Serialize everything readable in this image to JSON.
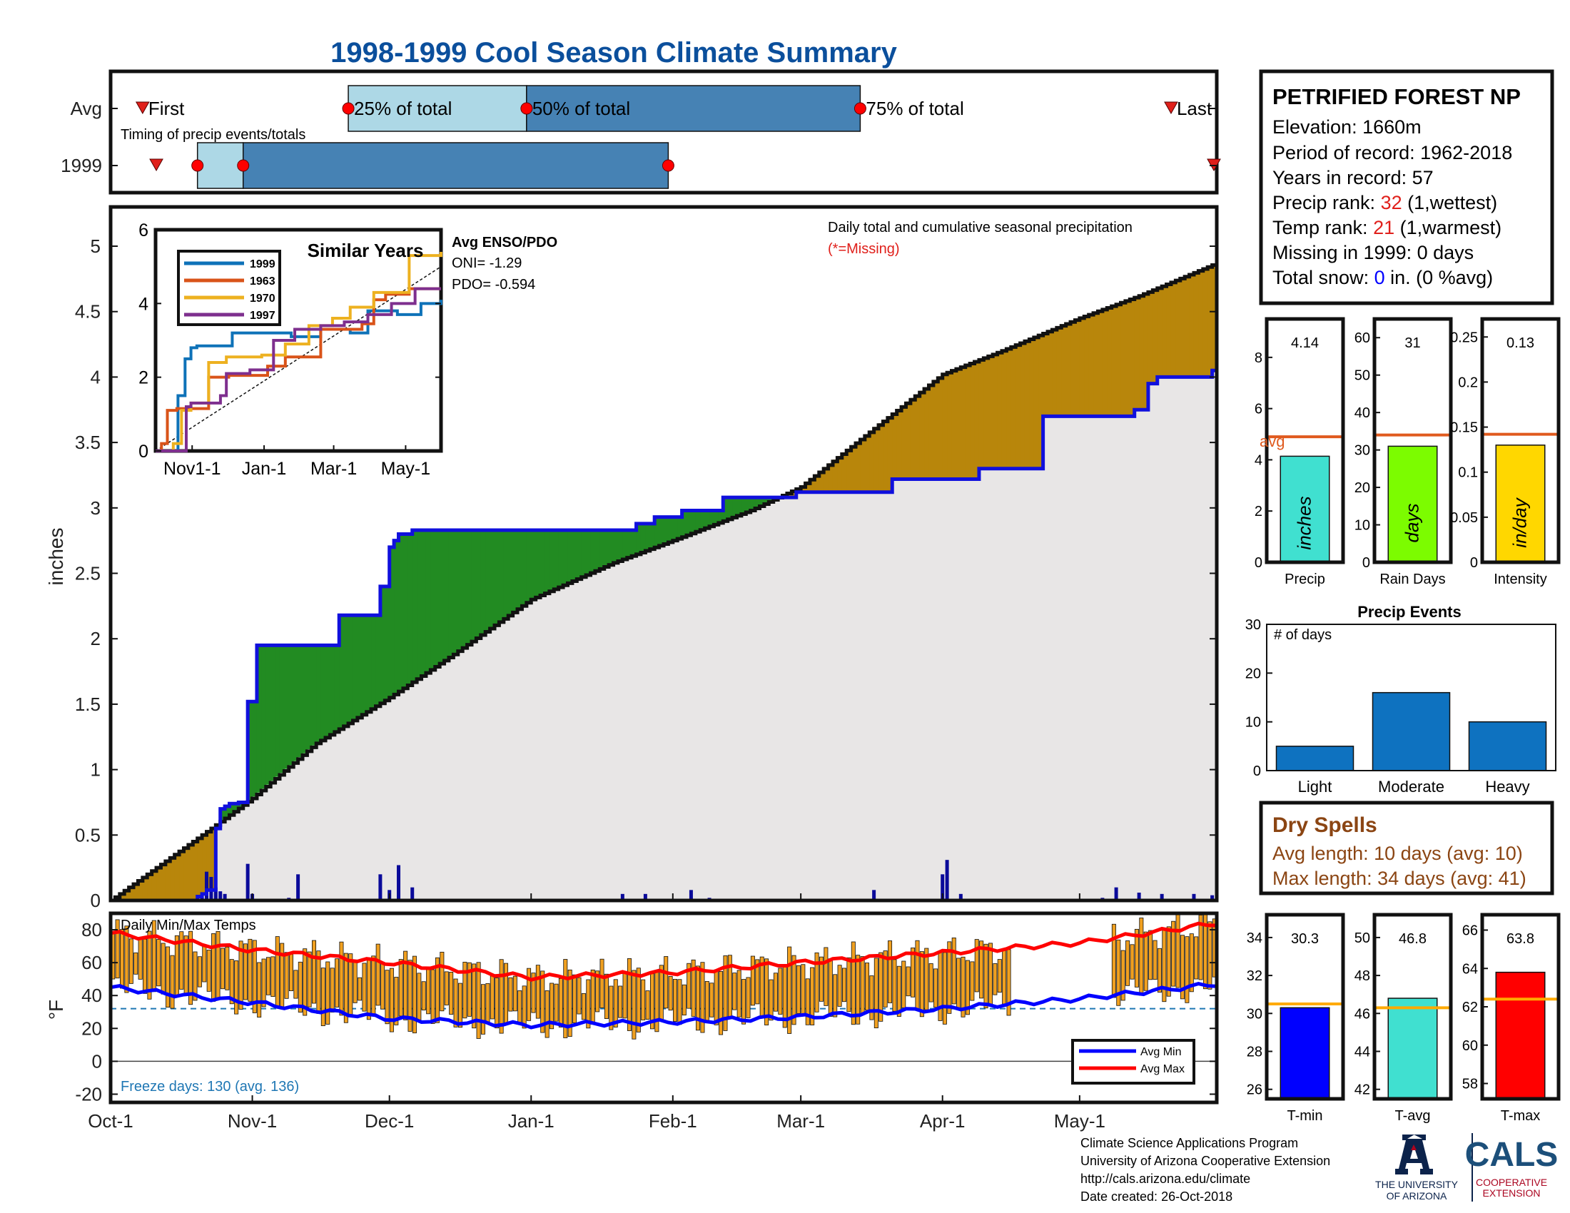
{
  "title": "1998-1999 Cool Season Climate Summary",
  "station": {
    "name": "PETRIFIED FOREST NP",
    "elevation": "Elevation: 1660m",
    "period": "Period of record: 1962-2018",
    "years": "Years in record: 57",
    "precip_rank_label": "Precip rank: ",
    "precip_rank_value": "32",
    "precip_rank_suffix": " (1,wettest)",
    "temp_rank_label": "Temp rank: ",
    "temp_rank_value": "21",
    "temp_rank_suffix": " (1,warmest)",
    "missing": "Missing in 1999: 0 days",
    "snow_label": "Total snow: ",
    "snow_value": "0",
    "snow_suffix": " in. (0 %avg)"
  },
  "dry_spells": {
    "title": "Dry Spells",
    "avg": "Avg length: 10 days (avg: 10)",
    "max": "Max length: 34 days (avg: 41)"
  },
  "footer": {
    "line1": "Climate Science Applications Program",
    "line2": "University of Arizona Cooperative Extension",
    "line3": "http://cals.arizona.edu/climate",
    "line4": " Date created: 26-Oct-2018",
    "ua_logo_line1": "THE UNIVERSITY",
    "ua_logo_line2": "OF ARIZONA",
    "cals_logo": "CALS",
    "cals_sub1": "COOPERATIVE",
    "cals_sub2": "EXTENSION"
  },
  "colors": {
    "title_blue": "#0b4f9c",
    "avg_line": "#e05a1e",
    "above_fill": "#228b22",
    "below_fill": "#b8860b",
    "area_fill": "#e8e6e6",
    "cum_line": "#1010dd",
    "temp_bar": "#f0a020",
    "dry_brown": "#8b4513",
    "red": "#e0201b"
  },
  "chart_data": [
    {
      "id": "timing",
      "type": "bar",
      "title": "Timing of precip events/totals",
      "rows": [
        "Avg",
        "1999"
      ],
      "marker_labels": [
        "First",
        "25% of total",
        "50% of total",
        "75% of total",
        "Last"
      ],
      "avg": {
        "first": "Oct-8",
        "p25": "Nov-22",
        "p50": "Dec-31",
        "p75": "Mar-14",
        "last": "May-21"
      },
      "y1999": {
        "first": "Oct-11",
        "p25": "Oct-20",
        "p50": "Oct-30",
        "p75": "Jan-31",
        "last": "May-31"
      }
    },
    {
      "id": "cumulative_precip",
      "type": "area",
      "title": "Daily total and cumulative seasonal precipitation",
      "subtitle": "(*=Missing)",
      "ylabel": "inches",
      "ylim": [
        0,
        5.3
      ],
      "yticks": [
        0,
        0.5,
        1,
        1.5,
        2,
        2.5,
        3,
        3.5,
        4,
        4.5,
        5
      ],
      "xticks": [
        "Oct-1",
        "Nov-1",
        "Dec-1",
        "Jan-1",
        "Feb-1",
        "Mar-1",
        "Apr-1",
        "May-1"
      ],
      "series": [
        {
          "name": "avg_cumulative",
          "x": [
            0,
            10,
            20,
            31,
            45,
            61,
            75,
            92,
            110,
            123,
            140,
            151,
            165,
            182,
            195,
            212,
            225,
            242
          ],
          "values": [
            0.0,
            0.25,
            0.5,
            0.78,
            1.2,
            1.55,
            1.88,
            2.3,
            2.58,
            2.75,
            2.98,
            3.16,
            3.55,
            4.02,
            4.2,
            4.45,
            4.62,
            4.87
          ]
        },
        {
          "name": "1999_cumulative",
          "x": [
            0,
            14,
            19,
            20,
            21,
            23,
            24,
            25,
            26,
            28,
            30,
            32,
            40,
            50,
            57,
            59,
            61,
            62,
            63,
            66,
            110,
            115,
            119,
            125,
            134,
            150,
            153,
            156,
            164,
            170,
            171,
            183,
            190,
            204,
            215,
            224,
            227,
            229,
            240,
            241,
            242
          ],
          "values": [
            0,
            0,
            0.03,
            0.05,
            0.08,
            0.55,
            0.7,
            0.72,
            0.74,
            0.75,
            1.52,
            1.95,
            1.95,
            2.18,
            2.18,
            2.4,
            2.7,
            2.75,
            2.8,
            2.83,
            2.83,
            2.88,
            2.93,
            2.98,
            3.08,
            3.12,
            3.12,
            3.12,
            3.12,
            3.12,
            3.22,
            3.22,
            3.3,
            3.7,
            3.7,
            3.75,
            3.95,
            4.0,
            4.0,
            4.05,
            4.12
          ]
        }
      ],
      "daily_events": [
        {
          "day": 20,
          "value": 0.03
        },
        {
          "day": 21,
          "value": 0.22
        },
        {
          "day": 22,
          "value": 0.18
        },
        {
          "day": 23,
          "value": 0.1
        },
        {
          "day": 24,
          "value": 0.07
        },
        {
          "day": 25,
          "value": 0.05
        },
        {
          "day": 30,
          "value": 0.28
        },
        {
          "day": 31,
          "value": 0.05
        },
        {
          "day": 39,
          "value": 0.02
        },
        {
          "day": 41,
          "value": 0.2
        },
        {
          "day": 59,
          "value": 0.2
        },
        {
          "day": 61,
          "value": 0.08
        },
        {
          "day": 63,
          "value": 0.27
        },
        {
          "day": 66,
          "value": 0.1
        },
        {
          "day": 112,
          "value": 0.05
        },
        {
          "day": 117,
          "value": 0.05
        },
        {
          "day": 127,
          "value": 0.08
        },
        {
          "day": 131,
          "value": 0.02
        },
        {
          "day": 167,
          "value": 0.08
        },
        {
          "day": 182,
          "value": 0.2
        },
        {
          "day": 183,
          "value": 0.31
        },
        {
          "day": 186,
          "value": 0.05
        },
        {
          "day": 217,
          "value": 0.02
        },
        {
          "day": 220,
          "value": 0.1
        },
        {
          "day": 225,
          "value": 0.06
        },
        {
          "day": 230,
          "value": 0.05
        },
        {
          "day": 237,
          "value": 0.05
        },
        {
          "day": 241,
          "value": 0.04
        }
      ]
    },
    {
      "id": "similar_years",
      "type": "line",
      "title": "Similar Years",
      "ylim": [
        0,
        6
      ],
      "yticks": [
        0,
        2,
        4,
        6
      ],
      "xticks": [
        "Nov1-1",
        "Jan-1",
        "Mar-1",
        "May-1"
      ],
      "series": [
        {
          "name": "1999",
          "color": "#0e72b8",
          "x": [
            0,
            14,
            19,
            25,
            30,
            35,
            55,
            65,
            90,
            115,
            140,
            165,
            180,
            205,
            225,
            242
          ],
          "values": [
            0,
            0,
            1.5,
            2.5,
            2.8,
            2.85,
            2.85,
            3.2,
            3.2,
            3.1,
            3.3,
            3.2,
            3.8,
            3.7,
            4.0,
            4.1
          ]
        },
        {
          "name": "1963",
          "color": "#d95319",
          "x": [
            0,
            5,
            10,
            18,
            30,
            45,
            62,
            80,
            95,
            110,
            125,
            140,
            160,
            175,
            185,
            195,
            215,
            242
          ],
          "values": [
            0,
            0.2,
            1.1,
            1.15,
            1.15,
            2.0,
            2.05,
            2.05,
            2.3,
            2.55,
            2.55,
            3.3,
            3.3,
            3.45,
            4.1,
            4.25,
            4.4,
            4.4
          ]
        },
        {
          "name": "1970",
          "color": "#edb120",
          "x": [
            0,
            15,
            22,
            30,
            45,
            60,
            90,
            110,
            130,
            150,
            165,
            185,
            200,
            215,
            230,
            242
          ],
          "values": [
            0,
            0.2,
            1.1,
            1.3,
            2.4,
            2.55,
            2.6,
            2.9,
            3.4,
            3.6,
            3.9,
            4.3,
            4.3,
            5.3,
            5.3,
            5.4
          ]
        },
        {
          "name": "1997",
          "color": "#7e2f8e",
          "x": [
            0,
            20,
            26,
            30,
            55,
            60,
            80,
            100,
            118,
            140,
            160,
            180,
            200,
            220,
            242
          ],
          "values": [
            0,
            0,
            1.2,
            1.3,
            1.5,
            2.1,
            2.2,
            3.0,
            3.3,
            3.4,
            3.5,
            3.7,
            4.0,
            4.4,
            4.4
          ]
        }
      ],
      "enso_title": "Avg ENSO/PDO",
      "oni": "ONI= -1.29",
      "pdo": "PDO= -0.594"
    },
    {
      "id": "temps",
      "type": "bar",
      "title": "Daily Min/Max Temps",
      "ylabel": "°F",
      "ylim": [
        -25,
        90
      ],
      "yticks": [
        -20,
        0,
        20,
        40,
        60,
        80
      ],
      "freeze_line": 32,
      "legend": [
        "Avg Min",
        "Avg Max"
      ],
      "freeze_days": "Freeze days: 130 (avg. 136)",
      "avg_max": {
        "x": [
          0,
          30,
          61,
          92,
          123,
          151,
          182,
          212,
          242
        ],
        "values": [
          78,
          68,
          60,
          51,
          54,
          60,
          66,
          72,
          84
        ]
      },
      "avg_min": {
        "x": [
          0,
          30,
          61,
          92,
          123,
          151,
          182,
          212,
          242
        ],
        "values": [
          45,
          36,
          26,
          22,
          24,
          27,
          32,
          38,
          47
        ]
      }
    },
    {
      "id": "precip_summary",
      "type": "bar",
      "panels": [
        {
          "label": "Precip",
          "value": 4.14,
          "avg": 4.9,
          "ylim": [
            0,
            9.5
          ],
          "yticks": [
            0,
            2,
            4,
            6,
            8
          ],
          "color": "#40e0d0",
          "unit": "inches",
          "value_text": "4.14",
          "avg_label": "avg"
        },
        {
          "label": "Rain Days",
          "value": 31,
          "avg": 34,
          "ylim": [
            0,
            65
          ],
          "yticks": [
            0,
            10,
            20,
            30,
            40,
            50,
            60
          ],
          "color": "#7cfc00",
          "unit": "days",
          "value_text": "31"
        },
        {
          "label": "Intensity",
          "value": 0.13,
          "avg": 0.142,
          "ylim": [
            0,
            0.27
          ],
          "yticks": [
            "0",
            "0.05",
            "0.1",
            "0.15",
            "0.2",
            "0.25"
          ],
          "tick_values": [
            0,
            0.05,
            0.1,
            0.15,
            0.2,
            0.25
          ],
          "color": "#ffd700",
          "unit": "in/day",
          "value_text": "0.13"
        }
      ]
    },
    {
      "id": "precip_events",
      "type": "bar",
      "title": "Precip Events",
      "annotation": "# of days",
      "categories": [
        "Light",
        "Moderate",
        "Heavy"
      ],
      "values": [
        5,
        16,
        10
      ],
      "ylim": [
        0,
        30
      ],
      "yticks": [
        0,
        10,
        20,
        30
      ]
    },
    {
      "id": "temp_summary",
      "type": "bar",
      "panels": [
        {
          "label": "T-min",
          "value": 30.3,
          "avg": 30.5,
          "ylim": [
            25.5,
            35.2
          ],
          "yticks": [
            26,
            28,
            30,
            32,
            34
          ],
          "color": "#0000ff",
          "value_text": "30.3"
        },
        {
          "label": "T-avg",
          "value": 46.8,
          "avg": 46.3,
          "ylim": [
            41.5,
            51.2
          ],
          "yticks": [
            42,
            44,
            46,
            48,
            50
          ],
          "color": "#40e0d0",
          "value_text": "46.8"
        },
        {
          "label": "T-max",
          "value": 63.8,
          "avg": 62.4,
          "ylim": [
            57.2,
            66.8
          ],
          "yticks": [
            58,
            60,
            62,
            64,
            66
          ],
          "color": "#ff0000",
          "value_text": "63.8"
        }
      ]
    }
  ]
}
